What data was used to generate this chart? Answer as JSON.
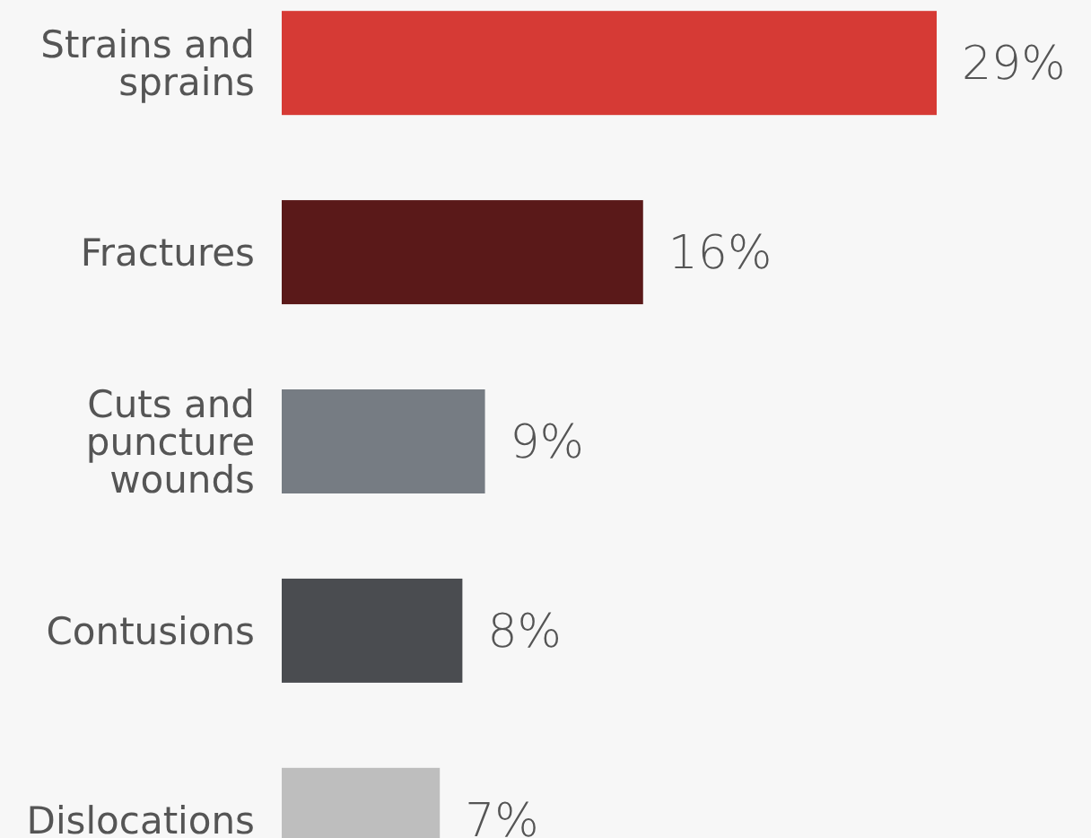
{
  "chart_data": {
    "type": "bar",
    "orientation": "horizontal",
    "categories": [
      "Strains and sprains",
      "Fractures",
      "Cuts and puncture wounds",
      "Contusions",
      "Dislocations"
    ],
    "values": [
      29,
      16,
      9,
      8,
      7
    ],
    "value_labels": [
      "29%",
      "16%",
      "9%",
      "8%",
      "7%"
    ],
    "colors": [
      "#d63a35",
      "#5a1919",
      "#767c83",
      "#4a4c50",
      "#bebebe"
    ]
  }
}
